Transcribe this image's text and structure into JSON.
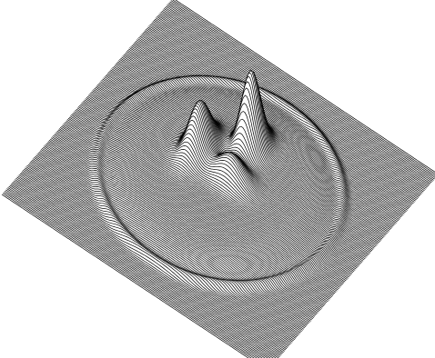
{
  "surface": {
    "render_style": "wireframe-hidden-line",
    "line_color": "#000000",
    "background_color": "#ffffff",
    "features": [
      {
        "kind": "circular-plateau",
        "description_name": "dish"
      },
      {
        "kind": "peak",
        "description_name": "left-peak"
      },
      {
        "kind": "peak",
        "description_name": "right-peak"
      }
    ]
  }
}
